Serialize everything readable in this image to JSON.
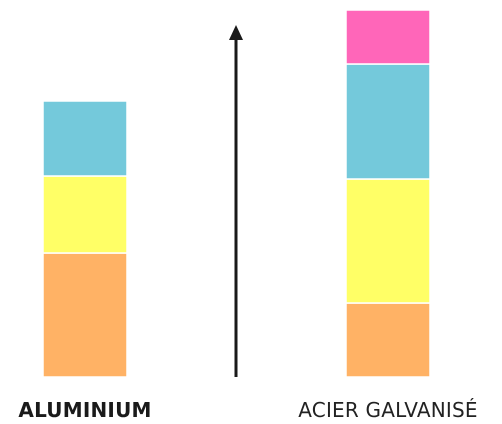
{
  "chart_data": {
    "type": "bar",
    "stacked": true,
    "categories": [
      "ALUMINIUM",
      "ACIER GALVANISÉ"
    ],
    "category_emphasis": [
      "bold",
      "normal"
    ],
    "series": [
      {
        "color": "#ffb265",
        "values": [
          124,
          74
        ]
      },
      {
        "color": "#ffff66",
        "values": [
          77,
          124
        ]
      },
      {
        "color": "#74c9db",
        "values": [
          75,
          115
        ]
      },
      {
        "color": "#ff66b9",
        "values": [
          0,
          54
        ]
      }
    ],
    "ylim": [
      0,
      368
    ],
    "axis": "single vertical arrow between bars, pointing up",
    "grid": false,
    "legend": "none"
  }
}
